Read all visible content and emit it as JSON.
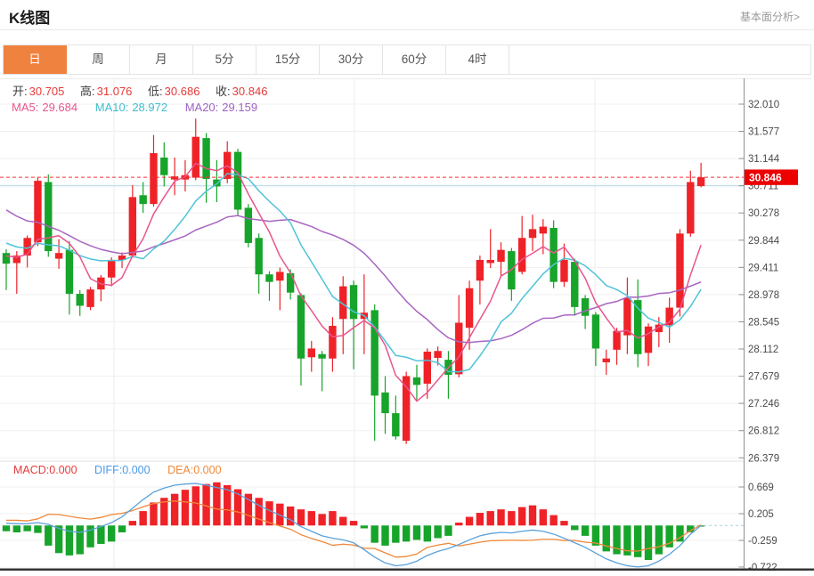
{
  "header": {
    "title": "K线图",
    "link": "基本面分析>"
  },
  "tabs": {
    "items": [
      "日",
      "周",
      "月",
      "5分",
      "15分",
      "30分",
      "60分",
      "4时"
    ],
    "active_index": 0
  },
  "ohlc": {
    "open_label": "开:",
    "open": "30.705",
    "high_label": "高:",
    "high": "31.076",
    "low_label": "低:",
    "low": "30.686",
    "close_label": "收:",
    "close": "30.846"
  },
  "ma_legend": [
    {
      "label": "MA5:",
      "value": "29.684",
      "color": "#e8558f"
    },
    {
      "label": "MA10:",
      "value": "28.972",
      "color": "#3fbccc"
    },
    {
      "label": "MA20:",
      "value": "29.159",
      "color": "#9e62c3"
    }
  ],
  "macd_legend": [
    {
      "label": "MACD:",
      "value": "0.000",
      "color": "#e83a3a"
    },
    {
      "label": "DIFF:",
      "value": "0.000",
      "color": "#4a9ce8"
    },
    {
      "label": "DEA:",
      "value": "0.000",
      "color": "#f08a3c"
    }
  ],
  "price_tag": {
    "value": "30.846",
    "bg": "#ec0000"
  },
  "colors": {
    "up": "#ef2228",
    "down": "#17a42a",
    "ma5": "#e8558f",
    "ma10": "#4fc3d9",
    "ma20": "#a866c0",
    "diff_line": "#5ba2db",
    "dea_line": "#f0883a",
    "price_dashed": "#f2303a",
    "reference_blue": "#bfe0ee",
    "tag_bg": "#ec0000",
    "tab_active_bg": "#f0823f",
    "grid": "#f0f0f0",
    "axis": "#909090",
    "label_text": "#4a4a4a"
  },
  "chart_data": {
    "type": "candlestick+macd",
    "panels": [
      {
        "name": "price",
        "y_axis_labels": [
          "32.010",
          "31.577",
          "31.144",
          "30.711",
          "30.278",
          "29.844",
          "29.411",
          "28.978",
          "28.545",
          "28.112",
          "27.679",
          "27.246",
          "26.812",
          "26.379"
        ],
        "ylim": [
          26.379,
          32.01
        ],
        "current_price_line": 30.846,
        "reference_line": 30.711,
        "ma_periods": [
          5,
          10,
          20
        ],
        "ma_seed_closes": [
          31.8,
          31.6,
          31.4,
          31.2,
          31.0,
          30.85,
          30.7,
          30.6,
          30.5,
          30.4,
          30.3,
          30.2,
          30.1,
          30.0,
          29.9,
          29.8,
          29.7,
          29.65,
          29.6,
          29.55
        ],
        "candles": [
          [
            29.64,
            29.7,
            29.05,
            29.47
          ],
          [
            29.48,
            29.67,
            28.99,
            29.6
          ],
          [
            29.6,
            29.92,
            29.41,
            29.88
          ],
          [
            29.81,
            30.84,
            29.75,
            30.79
          ],
          [
            30.77,
            30.89,
            29.58,
            29.67
          ],
          [
            29.55,
            29.86,
            29.39,
            29.64
          ],
          [
            29.69,
            29.83,
            28.66,
            28.99
          ],
          [
            28.99,
            29.05,
            28.64,
            28.8
          ],
          [
            28.78,
            29.1,
            28.73,
            29.06
          ],
          [
            29.06,
            29.29,
            28.87,
            29.25
          ],
          [
            29.25,
            29.57,
            29.11,
            29.53
          ],
          [
            29.53,
            29.65,
            29.4,
            29.6
          ],
          [
            29.6,
            30.72,
            29.57,
            30.53
          ],
          [
            30.56,
            30.77,
            30.28,
            30.42
          ],
          [
            30.42,
            31.52,
            30.38,
            31.23
          ],
          [
            31.16,
            31.4,
            30.7,
            30.88
          ],
          [
            30.81,
            31.16,
            30.56,
            30.86
          ],
          [
            30.81,
            31.12,
            30.62,
            30.88
          ],
          [
            30.84,
            31.78,
            30.8,
            31.49
          ],
          [
            31.47,
            31.55,
            30.44,
            30.82
          ],
          [
            30.81,
            31.12,
            30.45,
            30.7
          ],
          [
            30.82,
            31.42,
            30.75,
            31.25
          ],
          [
            31.25,
            31.3,
            30.23,
            30.33
          ],
          [
            30.36,
            30.42,
            29.73,
            29.8
          ],
          [
            29.88,
            29.95,
            28.99,
            29.3
          ],
          [
            29.3,
            29.35,
            28.88,
            29.18
          ],
          [
            29.2,
            29.41,
            28.73,
            29.34
          ],
          [
            29.32,
            29.38,
            28.9,
            29.01
          ],
          [
            28.97,
            29.0,
            27.53,
            27.96
          ],
          [
            27.98,
            28.24,
            27.75,
            28.12
          ],
          [
            28.03,
            28.08,
            27.44,
            27.96
          ],
          [
            27.96,
            28.62,
            27.75,
            28.48
          ],
          [
            28.59,
            29.27,
            28.03,
            29.11
          ],
          [
            29.13,
            29.2,
            27.79,
            28.59
          ],
          [
            28.59,
            29.3,
            28.03,
            28.69
          ],
          [
            28.73,
            28.82,
            26.65,
            27.37
          ],
          [
            27.42,
            27.68,
            26.76,
            27.09
          ],
          [
            27.09,
            27.37,
            26.67,
            26.72
          ],
          [
            26.65,
            27.75,
            26.6,
            27.68
          ],
          [
            27.66,
            27.86,
            27.3,
            27.54
          ],
          [
            27.56,
            28.12,
            27.32,
            28.07
          ],
          [
            27.97,
            28.15,
            27.85,
            28.08
          ],
          [
            27.94,
            28.08,
            27.32,
            27.7
          ],
          [
            27.71,
            28.97,
            27.66,
            28.53
          ],
          [
            28.45,
            29.2,
            28.1,
            29.08
          ],
          [
            29.2,
            29.6,
            28.82,
            29.53
          ],
          [
            29.48,
            30.02,
            29.4,
            29.53
          ],
          [
            29.5,
            29.81,
            29.27,
            29.69
          ],
          [
            29.67,
            29.72,
            28.88,
            29.06
          ],
          [
            29.34,
            30.23,
            29.3,
            29.88
          ],
          [
            29.88,
            30.25,
            29.67,
            30.02
          ],
          [
            29.95,
            30.18,
            29.62,
            30.06
          ],
          [
            30.04,
            30.16,
            29.08,
            29.18
          ],
          [
            29.18,
            29.79,
            29.1,
            29.53
          ],
          [
            29.5,
            29.55,
            28.64,
            28.78
          ],
          [
            28.92,
            28.97,
            28.43,
            28.64
          ],
          [
            28.66,
            28.7,
            27.84,
            28.12
          ],
          [
            27.9,
            28.1,
            27.7,
            27.96
          ],
          [
            28.1,
            28.45,
            27.86,
            28.4
          ],
          [
            28.33,
            29.25,
            28.03,
            28.92
          ],
          [
            28.89,
            29.22,
            27.82,
            28.03
          ],
          [
            28.05,
            28.52,
            27.84,
            28.47
          ],
          [
            28.38,
            28.62,
            28.14,
            28.5
          ],
          [
            28.49,
            28.93,
            28.21,
            28.77
          ],
          [
            28.77,
            30.02,
            28.63,
            29.95
          ],
          [
            29.95,
            30.95,
            29.9,
            30.77
          ],
          [
            30.705,
            31.076,
            30.686,
            30.846
          ]
        ]
      },
      {
        "name": "macd",
        "y_axis_labels": [
          "0.669",
          "0.205",
          "-0.259",
          "-0.722"
        ],
        "ylim": [
          -0.722,
          0.669
        ],
        "histogram": [
          -0.1,
          -0.12,
          -0.1,
          -0.13,
          -0.35,
          -0.48,
          -0.52,
          -0.5,
          -0.38,
          -0.32,
          -0.28,
          -0.12,
          0.08,
          0.25,
          0.4,
          0.48,
          0.55,
          0.62,
          0.68,
          0.72,
          0.75,
          0.7,
          0.63,
          0.55,
          0.48,
          0.42,
          0.38,
          0.33,
          0.28,
          0.25,
          0.2,
          0.25,
          0.15,
          0.08,
          -0.05,
          -0.3,
          -0.35,
          -0.3,
          -0.28,
          -0.25,
          -0.28,
          -0.22,
          -0.18,
          0.05,
          0.15,
          0.22,
          0.25,
          0.28,
          0.25,
          0.32,
          0.35,
          0.28,
          0.18,
          0.08,
          -0.08,
          -0.18,
          -0.35,
          -0.45,
          -0.5,
          -0.52,
          -0.55,
          -0.6,
          -0.5,
          -0.38,
          -0.28,
          -0.12,
          -0.02
        ],
        "diff": [
          0.04,
          0.03,
          0.03,
          0.05,
          0.02,
          -0.05,
          -0.1,
          -0.12,
          -0.08,
          -0.02,
          0.05,
          0.15,
          0.3,
          0.45,
          0.58,
          0.65,
          0.7,
          0.72,
          0.73,
          0.7,
          0.66,
          0.62,
          0.55,
          0.45,
          0.35,
          0.26,
          0.18,
          0.1,
          -0.02,
          -0.1,
          -0.18,
          -0.22,
          -0.25,
          -0.3,
          -0.42,
          -0.55,
          -0.65,
          -0.7,
          -0.68,
          -0.62,
          -0.52,
          -0.45,
          -0.4,
          -0.33,
          -0.25,
          -0.18,
          -0.14,
          -0.12,
          -0.13,
          -0.1,
          -0.08,
          -0.1,
          -0.15,
          -0.22,
          -0.3,
          -0.38,
          -0.48,
          -0.58,
          -0.65,
          -0.7,
          -0.72,
          -0.7,
          -0.62,
          -0.5,
          -0.35,
          -0.15,
          0.0
        ]
      }
    ]
  }
}
